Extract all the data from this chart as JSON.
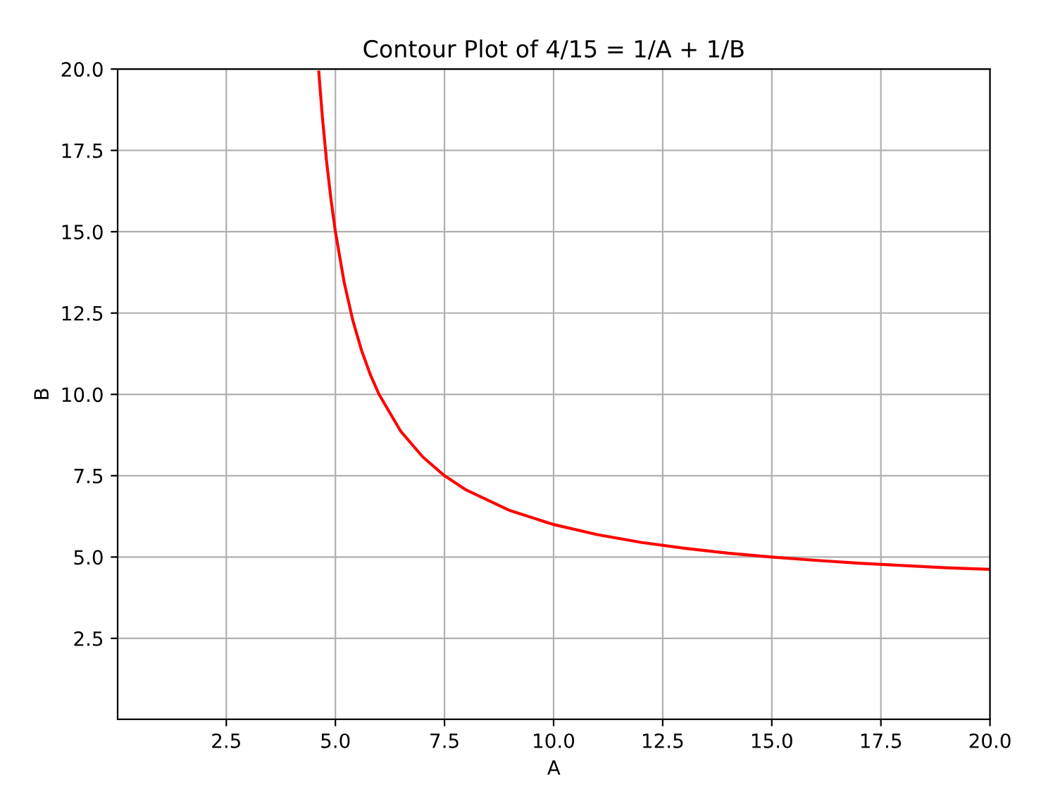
{
  "chart_data": {
    "type": "line",
    "title": "Contour Plot of 4/15 = 1/A + 1/B",
    "xlabel": "A",
    "ylabel": "B",
    "xlim": [
      0.01,
      20.0
    ],
    "ylim": [
      0.01,
      20.0
    ],
    "xticks": [
      2.5,
      {
        "value": 5,
        "label": "5.0"
      },
      7.5,
      {
        "value": 10,
        "label": "10.0"
      },
      12.5,
      {
        "value": 15,
        "label": "15.0"
      },
      17.5,
      {
        "value": 20,
        "label": "20.0"
      }
    ],
    "yticks": [
      2.5,
      {
        "value": 5,
        "label": "5.0"
      },
      7.5,
      {
        "value": 10,
        "label": "10.0"
      },
      12.5,
      {
        "value": 15,
        "label": "15.0"
      },
      17.5,
      {
        "value": 20,
        "label": "20.0"
      }
    ],
    "grid": true,
    "line_style": "solid",
    "series": [
      {
        "color": "#ff0000",
        "x": [
          4.62,
          4.7,
          4.8,
          4.9,
          5.0,
          5.2,
          5.4,
          5.6,
          5.8,
          6.0,
          6.5,
          7.0,
          7.5,
          8.0,
          9.0,
          10.0,
          11.0,
          12.0,
          13.0,
          14.0,
          15.0,
          16.0,
          17.0,
          18.0,
          19.0,
          20.0
        ],
        "values": [
          19.91,
          18.55,
          17.14,
          15.98,
          15.0,
          13.45,
          12.27,
          11.35,
          10.61,
          10.0,
          8.86,
          8.08,
          7.5,
          7.06,
          6.43,
          6.0,
          5.69,
          5.45,
          5.27,
          5.12,
          5.0,
          4.9,
          4.81,
          4.74,
          4.67,
          4.62
        ]
      }
    ]
  }
}
